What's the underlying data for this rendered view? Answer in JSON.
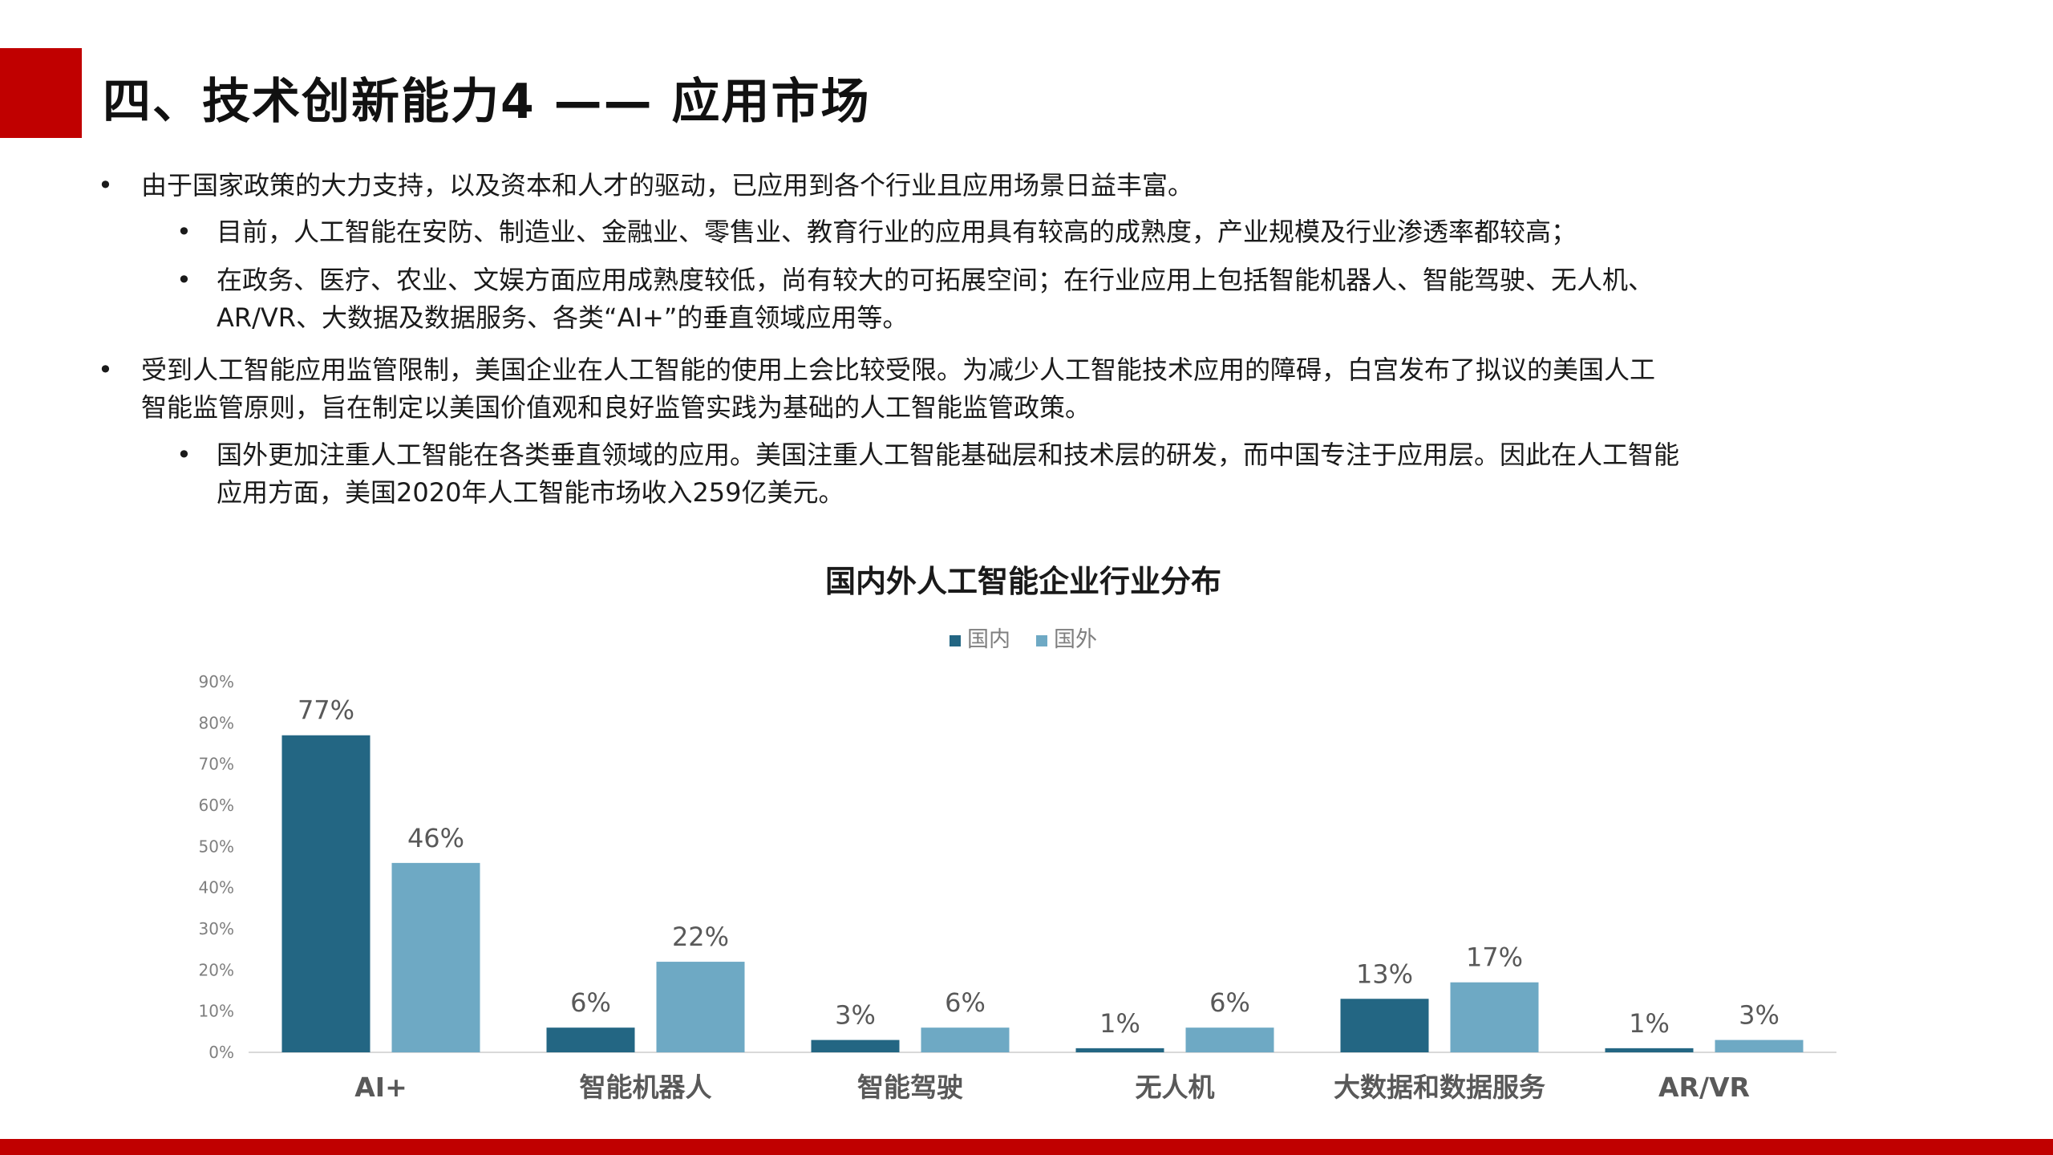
{
  "slide": {
    "title": "四、技术创新能力4 —— 应用市场",
    "accent_color": "#c00000"
  },
  "bullets": [
    {
      "level": 1,
      "lines": [
        "由于国家政策的大力支持，以及资本和人才的驱动，已应用到各个行业且应用场景日益丰富。"
      ]
    },
    {
      "level": 2,
      "lines": [
        "目前，人工智能在安防、制造业、金融业、零售业、教育行业的应用具有较高的成熟度，产业规模及行业渗透率都较高；"
      ]
    },
    {
      "level": 2,
      "lines": [
        "在政务、医疗、农业、文娱方面应用成熟度较低，尚有较大的可拓展空间；在行业应用上包括智能机器人、智能驾驶、无人机、",
        "AR/VR、大数据及数据服务、各类“AI+”的垂直领域应用等。"
      ]
    },
    {
      "level": 1,
      "lines": [
        "受到人工智能应用监管限制，美国企业在人工智能的使用上会比较受限。为减少人工智能技术应用的障碍，白宫发布了拟议的美国人工",
        "智能监管原则，旨在制定以美国价值观和良好监管实践为基础的人工智能监管政策。"
      ]
    },
    {
      "level": 2,
      "lines": [
        "国外更加注重人工智能在各类垂直领域的应用。美国注重人工智能基础层和技术层的研发，而中国专注于应用层。因此在人工智能",
        "应用方面，美国2020年人工智能市场收入259亿美元。"
      ]
    }
  ],
  "chart_data": {
    "type": "bar",
    "title": "国内外人工智能企业行业分布",
    "categories": [
      "AI+",
      "智能机器人",
      "智能驾驶",
      "无人机",
      "大数据和数据服务",
      "AR/VR"
    ],
    "series": [
      {
        "name": "国内",
        "values": [
          77,
          6,
          3,
          1,
          13,
          1
        ],
        "color": "#236683"
      },
      {
        "name": "国外",
        "values": [
          46,
          22,
          6,
          6,
          17,
          3
        ],
        "color": "#6ea9c4"
      }
    ],
    "data_labels": [
      [
        "77%",
        "6%",
        "3%",
        "1%",
        "13%",
        "1%"
      ],
      [
        "46%",
        "22%",
        "6%",
        "6%",
        "17%",
        "3%"
      ]
    ],
    "ylim": [
      0,
      90
    ],
    "yticks": [
      "0%",
      "10%",
      "20%",
      "30%",
      "40%",
      "50%",
      "60%",
      "70%",
      "80%",
      "90%"
    ],
    "legend_position": "top-center",
    "grid": false
  }
}
